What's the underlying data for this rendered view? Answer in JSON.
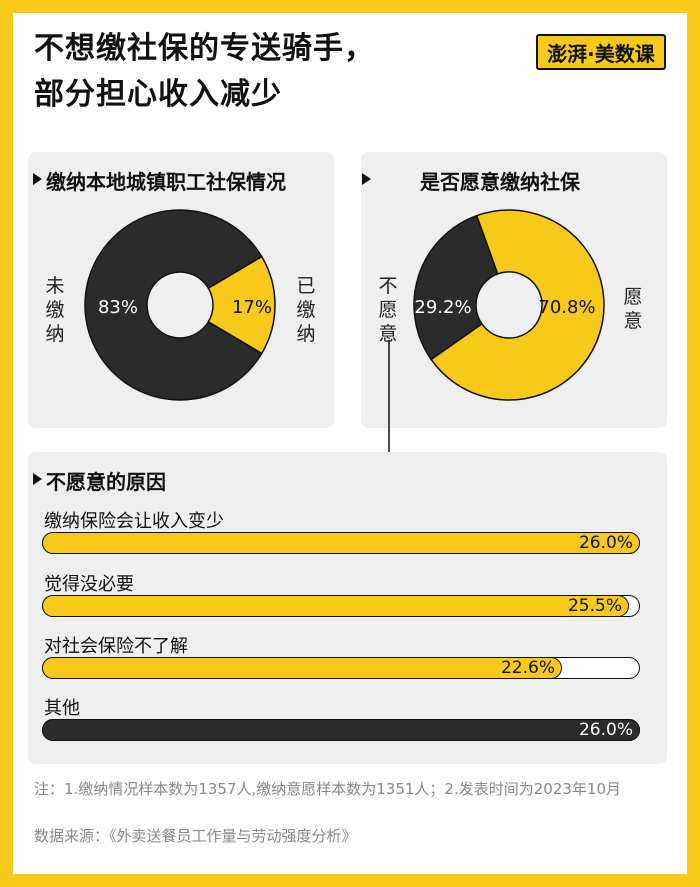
{
  "title_lines": [
    "不想缴社保的专送骑手，",
    "部分担心收入减少"
  ],
  "logo_text": "澎湃·美数课",
  "colors": {
    "yellow": "#F7C91A",
    "dark": "#2B2B2B",
    "panel": "#EFEFEF"
  },
  "chart_data": [
    {
      "type": "pie",
      "title": "缴纳本地城镇职工社保情况",
      "labels": [
        "未缴纳",
        "已缴纳"
      ],
      "values": [
        83,
        17
      ],
      "value_labels": [
        "83%",
        "17%"
      ]
    },
    {
      "type": "pie",
      "title": "是否愿意缴纳社保",
      "labels": [
        "不愿意",
        "愿意"
      ],
      "values": [
        29.2,
        70.8
      ],
      "value_labels": [
        "29.2%",
        "70.8%"
      ]
    },
    {
      "type": "bar",
      "title": "不愿意的原因",
      "categories": [
        "缴纳保险会让收入变少",
        "觉得没必要",
        "对社会保险不了解",
        "其他"
      ],
      "values": [
        26.0,
        25.5,
        22.6,
        26.0
      ],
      "value_labels": [
        "26.0%",
        "25.5%",
        "22.6%",
        "26.0%"
      ]
    }
  ],
  "footnote": "注：1.缴纳情况样本数为1357人,缴纳意愿样本数为1351人；2.发表时间为2023年10月",
  "source": "数据来源：《外卖送餐员工作量与劳动强度分析》"
}
